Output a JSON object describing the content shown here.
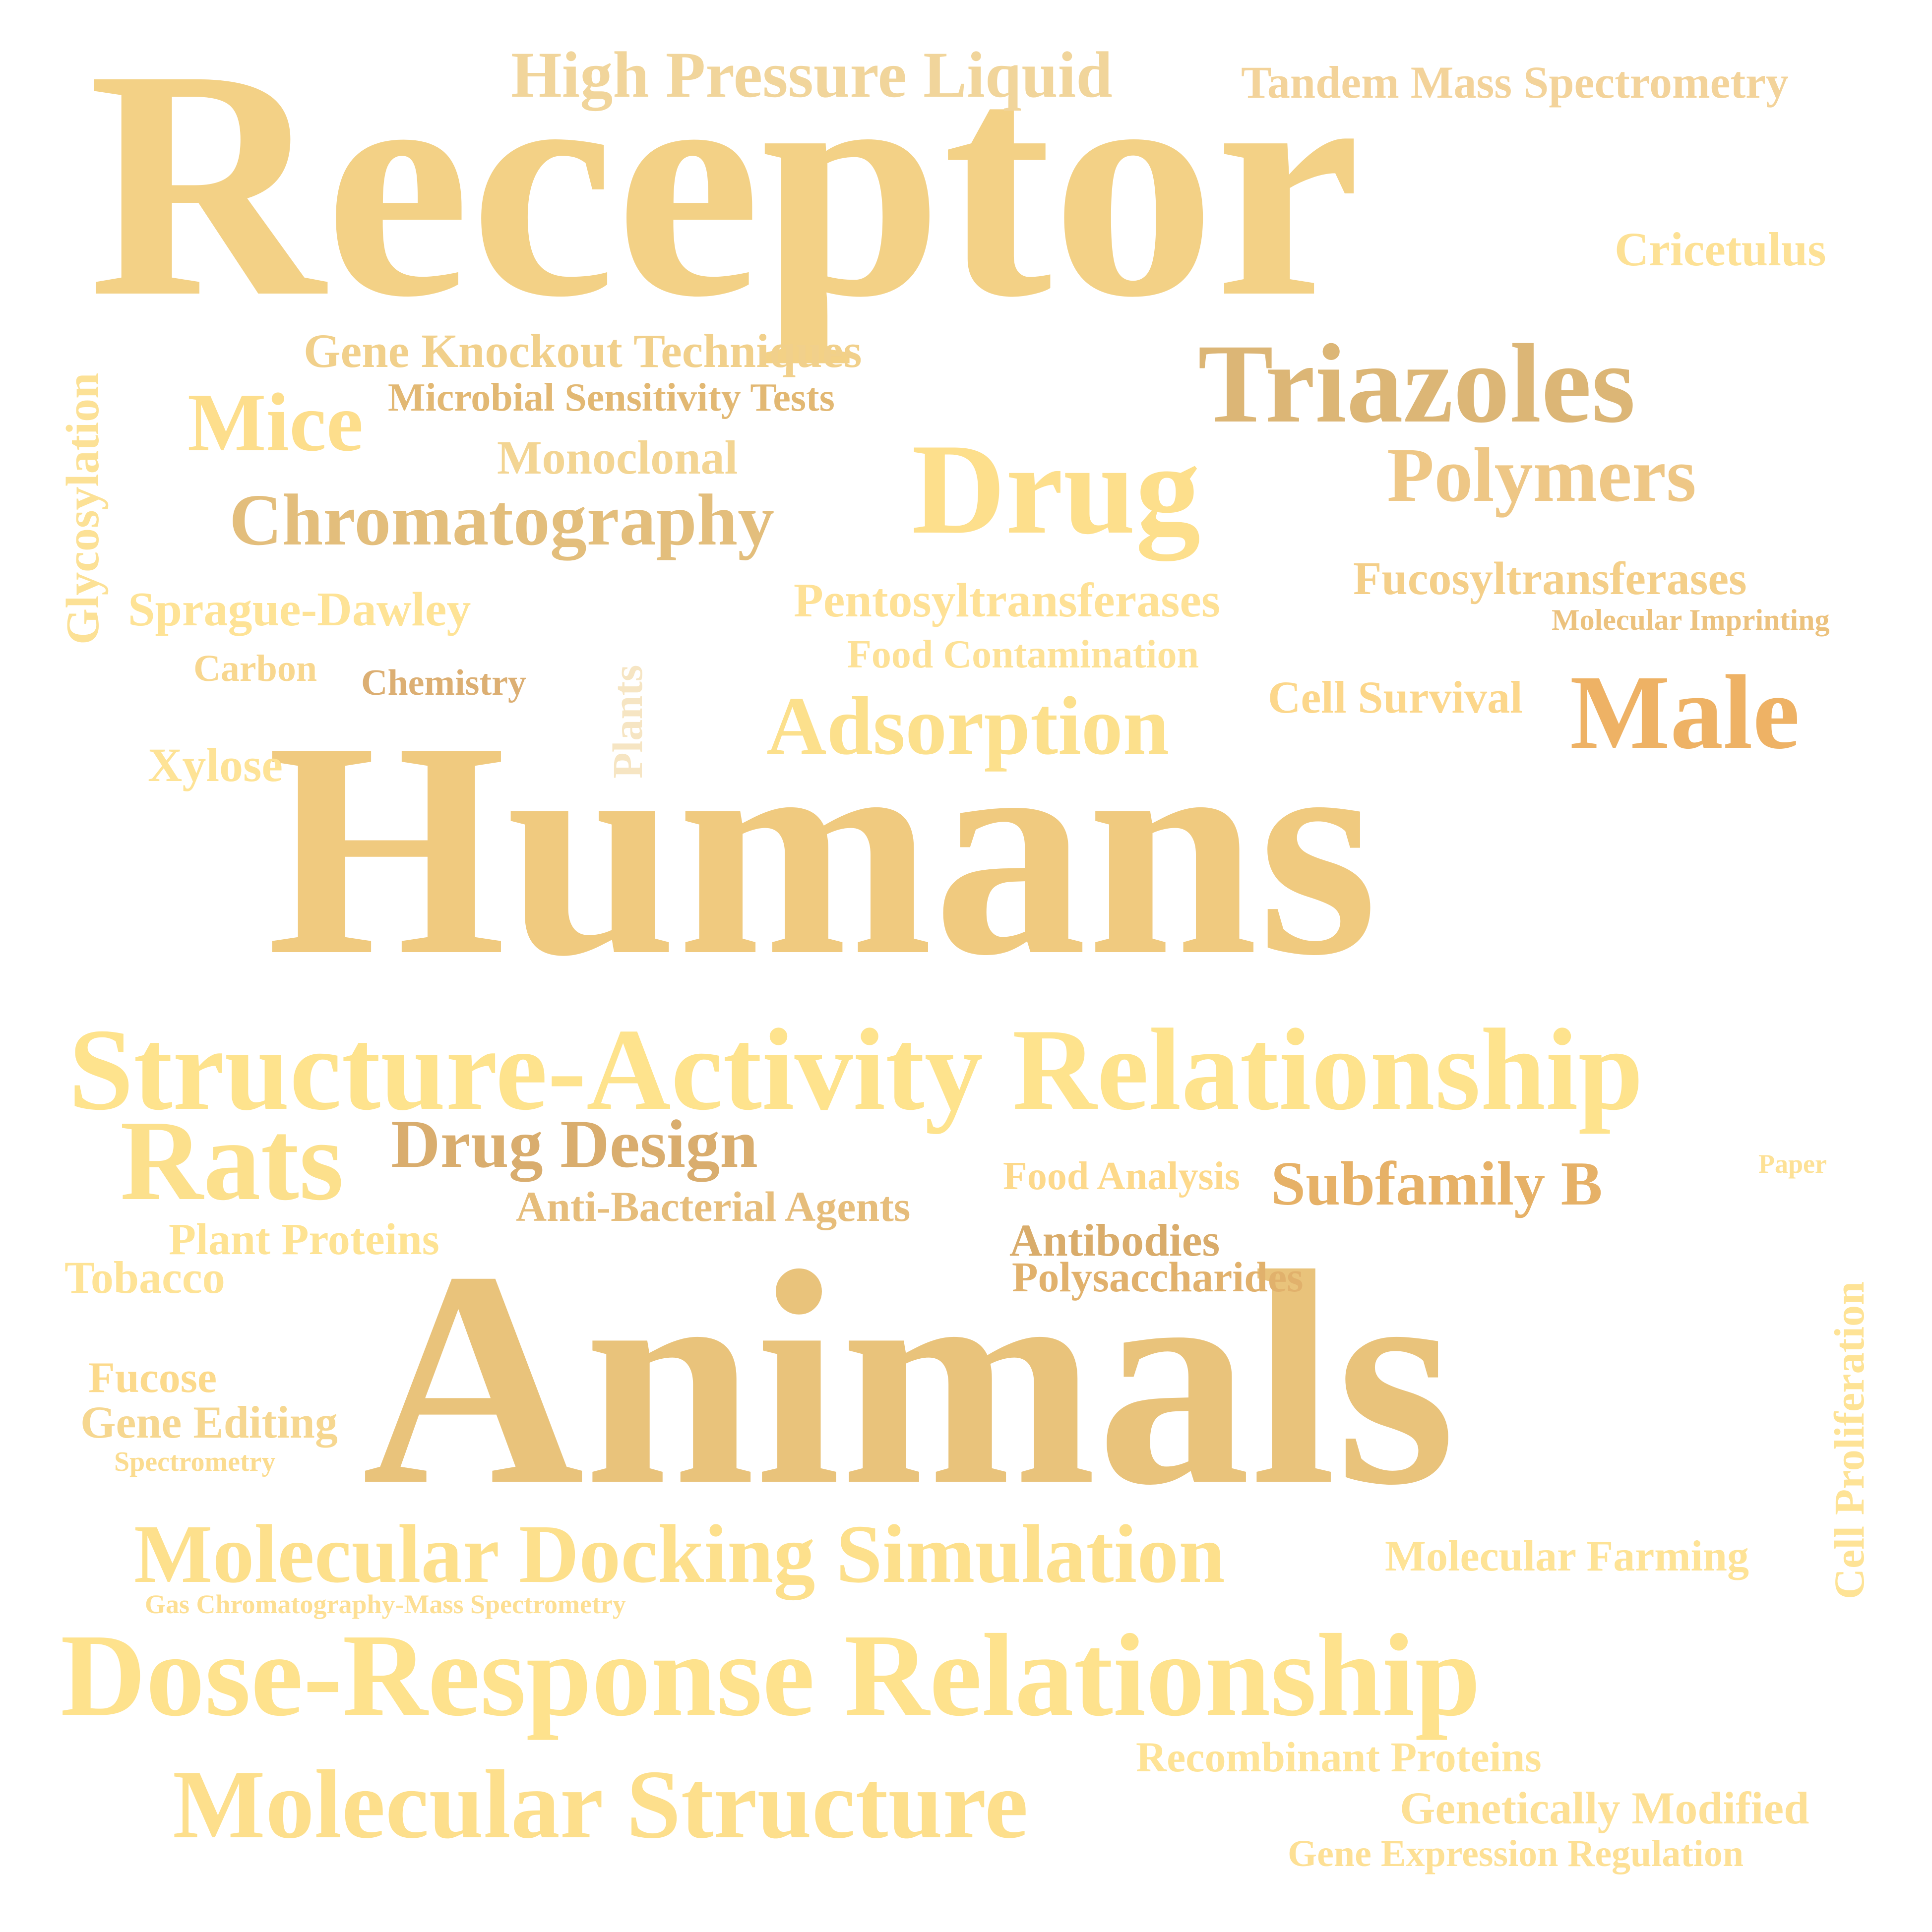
{
  "words": [
    {
      "id": "receptor",
      "text": "Receptor",
      "color": "#F3D186"
    },
    {
      "id": "humans",
      "text": "Humans",
      "color": "#F0CA7F"
    },
    {
      "id": "animals",
      "text": "Animals",
      "color": "#E9C37B"
    },
    {
      "id": "structure-activity-relationship",
      "text": "Structure-Activity Relationship",
      "color": "#FEE38D"
    },
    {
      "id": "dose-response-relationship",
      "text": "Dose-Response Relationship",
      "color": "#FEE28D"
    },
    {
      "id": "molecular-structure",
      "text": "Molecular Structure",
      "color": "#FDDF8C"
    },
    {
      "id": "molecular-docking-simulation",
      "text": "Molecular Docking Simulation",
      "color": "#FDE08C"
    },
    {
      "id": "triazoles",
      "text": "Triazoles",
      "color": "#DCB676"
    },
    {
      "id": "drug",
      "text": "Drug",
      "color": "#FDDF8C"
    },
    {
      "id": "male",
      "text": "Male",
      "color": "#EEB265"
    },
    {
      "id": "rats",
      "text": "Rats",
      "color": "#FCE08C"
    },
    {
      "id": "polymers",
      "text": "Polymers",
      "color": "#EEC786"
    },
    {
      "id": "adsorption",
      "text": "Adsorption",
      "color": "#FCE08C"
    },
    {
      "id": "chromatography",
      "text": "Chromatography",
      "color": "#E3BE7C"
    },
    {
      "id": "mice",
      "text": "Mice",
      "color": "#FDDE8C"
    },
    {
      "id": "drug-design",
      "text": "Drug Design",
      "color": "#D9AD6E"
    },
    {
      "id": "high-pressure-liquid",
      "text": "High Pressure Liquid",
      "color": "#F1D59B"
    },
    {
      "id": "tandem-mass-spectrometry",
      "text": "Tandem Mass Spectrometry",
      "color": "#F3D39A"
    },
    {
      "id": "cricetulus",
      "text": "Cricetulus",
      "color": "#FDE195"
    },
    {
      "id": "gene-knockout-techniques",
      "text": "Gene Knockout Techniques",
      "color": "#F1D08B"
    },
    {
      "id": "microbial-sensitivity-tests",
      "text": "Microbial Sensitivity Tests",
      "color": "#E2B873"
    },
    {
      "id": "monoclonal",
      "text": "Monoclonal",
      "color": "#F3D593"
    },
    {
      "id": "glycosylation",
      "text": "Glycosylation",
      "color": "#FCE196"
    },
    {
      "id": "sprague-dawley",
      "text": "Sprague-Dawley",
      "color": "#FEE396"
    },
    {
      "id": "pentosyltransferases",
      "text": "Pentosyltransferases",
      "color": "#FEE196"
    },
    {
      "id": "fucosyltransferases",
      "text": "Fucosyltransferases",
      "color": "#F4CF89"
    },
    {
      "id": "molecular-imprinting",
      "text": "Molecular Imprinting",
      "color": "#ECC27E"
    },
    {
      "id": "food-contamination",
      "text": "Food Contamination",
      "color": "#FDE196"
    },
    {
      "id": "carbon",
      "text": "Carbon",
      "color": "#F8D78F"
    },
    {
      "id": "chemistry",
      "text": "Chemistry",
      "color": "#DCAF73"
    },
    {
      "id": "plants",
      "text": "Plants",
      "color": "#F6E5C3"
    },
    {
      "id": "cell-survival",
      "text": "Cell Survival",
      "color": "#FCD78B"
    },
    {
      "id": "xylose",
      "text": "Xylose",
      "color": "#FEE396"
    },
    {
      "id": "subfamily-b",
      "text": "Subfamily B",
      "color": "#E6B167"
    },
    {
      "id": "food-analysis",
      "text": "Food Analysis",
      "color": "#FDD98B"
    },
    {
      "id": "paper",
      "text": "Paper",
      "color": "#FDE196"
    },
    {
      "id": "anti-bacterial-agents",
      "text": "Anti-Bacterial Agents",
      "color": "#E6BD7B"
    },
    {
      "id": "plant-proteins",
      "text": "Plant Proteins",
      "color": "#FEE393"
    },
    {
      "id": "antibodies",
      "text": "Antibodies",
      "color": "#D9AC6B"
    },
    {
      "id": "tobacco",
      "text": "Tobacco",
      "color": "#FEE396"
    },
    {
      "id": "polysaccharides",
      "text": "Polysaccharides",
      "color": "#E1B16C"
    },
    {
      "id": "cell-proliferation",
      "text": "Cell Proliferation",
      "color": "#FEE396"
    },
    {
      "id": "fucose",
      "text": "Fucose",
      "color": "#FCDA8C"
    },
    {
      "id": "gene-editing",
      "text": "Gene Editing",
      "color": "#F6D790"
    },
    {
      "id": "spectrometry",
      "text": "Spectrometry",
      "color": "#FBDC90"
    },
    {
      "id": "molecular-farming",
      "text": "Molecular Farming",
      "color": "#FEE396"
    },
    {
      "id": "gas-chromatography-mass-spectrometry",
      "text": "Gas Chromatography-Mass Spectrometry",
      "color": "#FDDF93"
    },
    {
      "id": "recombinant-proteins",
      "text": "Recombinant Proteins",
      "color": "#FEE396"
    },
    {
      "id": "genetically-modified",
      "text": "Genetically Modified",
      "color": "#FDE095"
    },
    {
      "id": "gene-expression-regulation",
      "text": "Gene Expression Regulation",
      "color": "#FDE095"
    }
  ]
}
